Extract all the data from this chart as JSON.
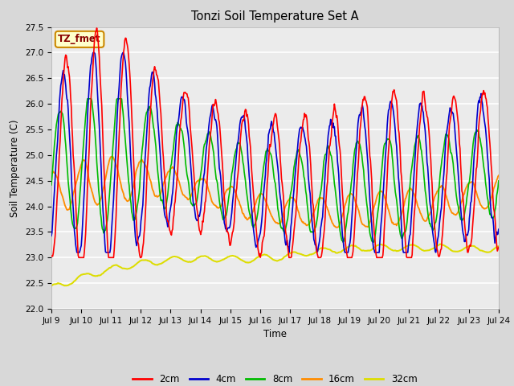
{
  "title": "Tonzi Soil Temperature Set A",
  "xlabel": "Time",
  "ylabel": "Soil Temperature (C)",
  "annotation": "TZ_fmet",
  "ylim": [
    22.0,
    27.5
  ],
  "yticks": [
    22.0,
    22.5,
    23.0,
    23.5,
    24.0,
    24.5,
    25.0,
    25.5,
    26.0,
    26.5,
    27.0,
    27.5
  ],
  "xtick_labels": [
    "Jul 9",
    "Jul 10",
    "Jul 11",
    "Jul 12",
    "Jul 13",
    "Jul 14",
    "Jul 15",
    "Jul 16",
    "Jul 17",
    "Jul 18",
    "Jul 19",
    "Jul 20",
    "Jul 21",
    "Jul 22",
    "Jul 23",
    "Jul 24"
  ],
  "colors": {
    "2cm": "#FF0000",
    "4cm": "#0000CD",
    "8cm": "#00BB00",
    "16cm": "#FF8C00",
    "32cm": "#DDDD00"
  },
  "background_color": "#D8D8D8",
  "plot_bg_color": "#EBEBEB",
  "annotation_bg": "#FFFFCC",
  "annotation_border": "#CC8800",
  "annotation_text_color": "#880000",
  "grid_color": "#FFFFFF",
  "linewidth": 1.2
}
